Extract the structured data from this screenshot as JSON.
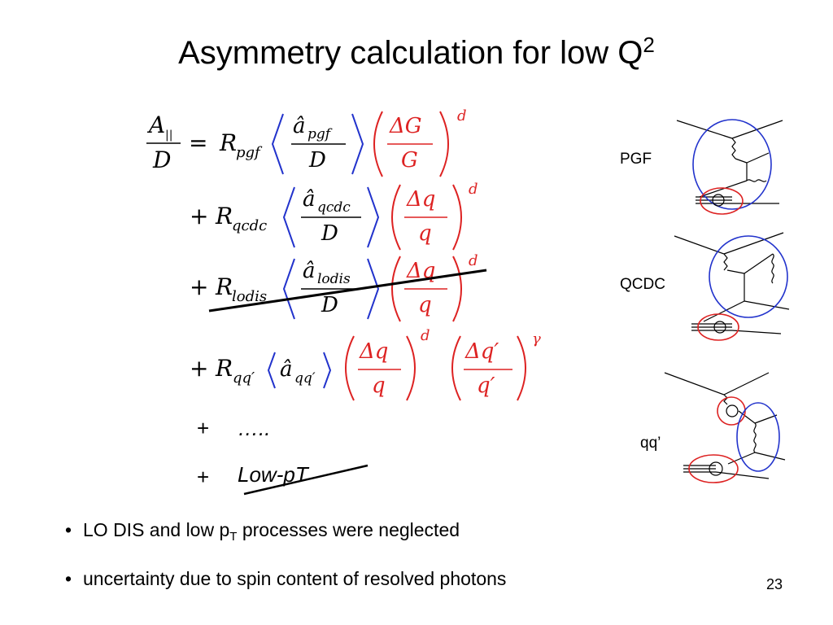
{
  "title": {
    "text": "Asymmetry calculation for low Q",
    "superscript": "2"
  },
  "equation": {
    "lhs_numerator": "A",
    "lhs_subscript": "||",
    "lhs_denominator": "D",
    "equals": "=",
    "plus": "+",
    "terms": [
      {
        "R": "R",
        "R_sub": "pgf",
        "a_sub": "pgf",
        "denominator": "D",
        "ratio_num": "ΔG",
        "ratio_den": "G",
        "power": "d"
      },
      {
        "R": "R",
        "R_sub": "qcdc",
        "a_sub": "qcdc",
        "denominator": "D",
        "ratio_num": "Δq",
        "ratio_den": "q",
        "power": "d"
      },
      {
        "R": "R",
        "R_sub": "lodis",
        "a_sub": "lodis",
        "denominator": "D",
        "ratio_num": "Δq",
        "ratio_den": "q",
        "power": "d",
        "struck": true
      },
      {
        "R": "R",
        "R_sub": "qq′",
        "a_sub": "qq′",
        "ratio1_num": "Δq",
        "ratio1_den": "q",
        "power1": "d",
        "ratio2_num": "Δq′",
        "ratio2_den": "q′",
        "power2": "γ"
      }
    ],
    "a_hat": "â"
  },
  "extras": {
    "dots_plus": "+",
    "dots": "…..",
    "lowpt_plus": "+",
    "lowpt": "Low-pT"
  },
  "diagrams": [
    {
      "label": "PGF",
      "icon": "pgf-feynman-diagram-icon"
    },
    {
      "label": "QCDC",
      "icon": "qcdc-feynman-diagram-icon"
    },
    {
      "label": "qq’",
      "icon": "qq-resolved-photon-diagram-icon"
    }
  ],
  "bullets": [
    {
      "text_before": "LO DIS and low p",
      "sub": "T",
      "text_after": " processes were neglected"
    },
    {
      "text": "uncertainty due to  spin content of  resolved photons"
    }
  ],
  "bullet_char": "•",
  "page_number": "23",
  "colors": {
    "blue": "#2233cc",
    "red": "#dd2222",
    "black": "#000000"
  }
}
